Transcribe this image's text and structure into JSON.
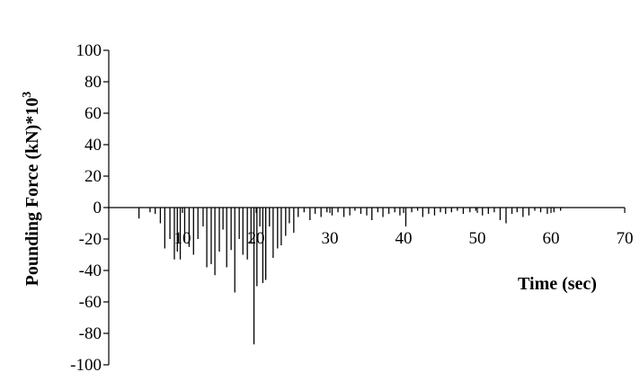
{
  "chart_data": {
    "type": "bar",
    "title": "",
    "xlabel": "Time (sec)",
    "ylabel": "Pounding Force (kN)*10",
    "ylabel_superscript": "3",
    "xlim": [
      0,
      70
    ],
    "ylim": [
      -100,
      100
    ],
    "x_ticks": [
      10,
      20,
      30,
      40,
      50,
      60,
      70
    ],
    "y_ticks": [
      100,
      80,
      60,
      40,
      20,
      0,
      -20,
      -40,
      -60,
      -80,
      -100
    ],
    "x_tick_labels": [
      "10",
      "20",
      "30",
      "40",
      "50",
      "60",
      "70"
    ],
    "y_tick_labels": [
      "100",
      "80",
      "60",
      "40",
      "20",
      "0",
      "-20",
      "-40",
      "-60",
      "-80",
      "-100"
    ],
    "grid": false,
    "series": [
      {
        "x": [
          4.1,
          5.6,
          6.3,
          7.0,
          7.6,
          8.3,
          8.9,
          9.3,
          9.7,
          10.3,
          10.9,
          11.5,
          12.1,
          12.8,
          13.3,
          13.9,
          14.4,
          15.0,
          15.5,
          16.0,
          16.6,
          17.1,
          17.7,
          18.2,
          18.8,
          19.3,
          19.7,
          20.1,
          20.5,
          20.9,
          21.3,
          21.8,
          22.3,
          22.9,
          23.4,
          24.0,
          24.5,
          25.1,
          25.7,
          26.5,
          27.3,
          28.0,
          28.8,
          29.6,
          30.3,
          31.1,
          31.9,
          32.7,
          33.4,
          34.2,
          35.0,
          35.7,
          36.5,
          37.2,
          38.0,
          38.8,
          39.5,
          40.3,
          41.1,
          41.9,
          42.6,
          43.4,
          44.2,
          45.0,
          45.7,
          46.5,
          47.3,
          48.1,
          49.0,
          49.8,
          50.7,
          51.5,
          52.3,
          53.1,
          53.9,
          54.7,
          55.4,
          56.2,
          57.0,
          57.8,
          58.6,
          59.5,
          60.4,
          61.3
        ],
        "values": [
          -7,
          -3,
          -4,
          -10,
          -26,
          -20,
          -33,
          -28,
          -33,
          -22,
          -25,
          -30,
          -20,
          -12,
          -38,
          -36,
          -43,
          -28,
          -14,
          -38,
          -27,
          -54,
          -20,
          -30,
          -33,
          -22,
          -87,
          -50,
          -12,
          -48,
          -46,
          -12,
          -32,
          -26,
          -24,
          -18,
          -10,
          -16,
          -6,
          -3,
          -8,
          -4,
          -6,
          -3,
          -5,
          -3,
          -6,
          -5,
          -2,
          -4,
          -5,
          -8,
          -3,
          -6,
          -4,
          -3,
          -5,
          -12,
          -3,
          -2,
          -6,
          -4,
          -5,
          -3,
          -4,
          -3,
          -2,
          -4,
          -3,
          -2,
          -5,
          -4,
          -3,
          -8,
          -10,
          -4,
          -3,
          -6,
          -5,
          -2,
          -3,
          -4,
          -3,
          -2
        ]
      }
    ]
  }
}
